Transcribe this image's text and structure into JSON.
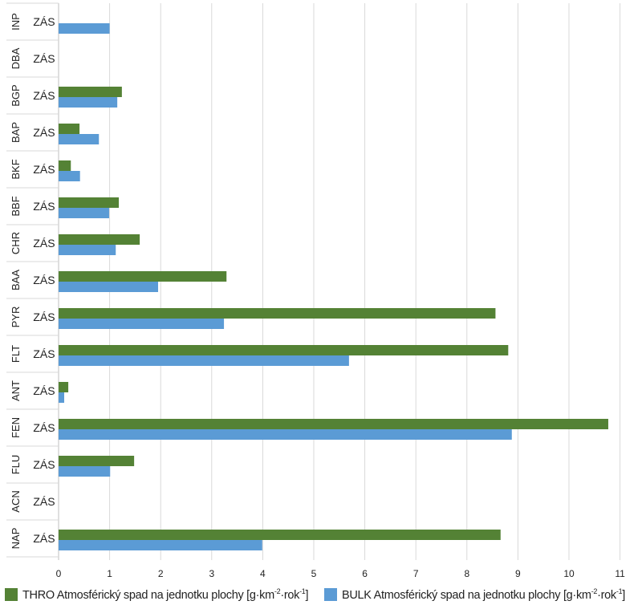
{
  "chart_data": {
    "type": "bar",
    "orientation": "horizontal",
    "title": "",
    "xlabel": "",
    "ylabel": "",
    "xlim": [
      0,
      11
    ],
    "x_ticks": [
      "0",
      "1",
      "2",
      "3",
      "4",
      "5",
      "6",
      "7",
      "8",
      "9",
      "10",
      "11"
    ],
    "grid": true,
    "legend_position": "bottom",
    "categories": [
      {
        "group": "INP",
        "label": "ZÁS"
      },
      {
        "group": "DBA",
        "label": "ZÁS"
      },
      {
        "group": "BGP",
        "label": "ZÁS"
      },
      {
        "group": "BAP",
        "label": "ZÁS"
      },
      {
        "group": "BKF",
        "label": "ZÁS"
      },
      {
        "group": "BBF",
        "label": "ZÁS"
      },
      {
        "group": "CHR",
        "label": "ZÁS"
      },
      {
        "group": "BAA",
        "label": "ZÁS"
      },
      {
        "group": "PYR",
        "label": "ZÁS"
      },
      {
        "group": "FLT",
        "label": "ZÁS"
      },
      {
        "group": "ANT",
        "label": "ZÁS"
      },
      {
        "group": "FEN",
        "label": "ZÁS"
      },
      {
        "group": "FLU",
        "label": "ZÁS"
      },
      {
        "group": "ACN",
        "label": "ZÁS"
      },
      {
        "group": "NAP",
        "label": "ZÁS"
      }
    ],
    "series": [
      {
        "name": "THRO Atmosférický spad na jednotku plochy [g·km⁻²·rok⁻¹]",
        "legend_main": "THRO Atmosférický spad na jednotku plochy [g·km",
        "color": "#548235",
        "values": [
          0,
          0,
          1.24,
          0.41,
          0.24,
          1.18,
          1.59,
          3.29,
          8.56,
          8.81,
          0.19,
          10.77,
          1.48,
          0,
          8.66
        ]
      },
      {
        "name": "BULK Atmosférický spad na jednotku plochy [g·km⁻²·rok⁻¹]",
        "legend_main": "BULK Atmosférický spad na jednotku plochy [g·km",
        "color": "#5b9bd5",
        "values": [
          1.0,
          0,
          1.15,
          0.79,
          0.42,
          0.99,
          1.12,
          1.95,
          3.24,
          5.69,
          0.11,
          8.88,
          1.01,
          0,
          3.99
        ]
      }
    ]
  },
  "legend_units": {
    "exp1": "-2",
    "mid": "·rok",
    "exp2": "-1",
    "end": "]"
  }
}
